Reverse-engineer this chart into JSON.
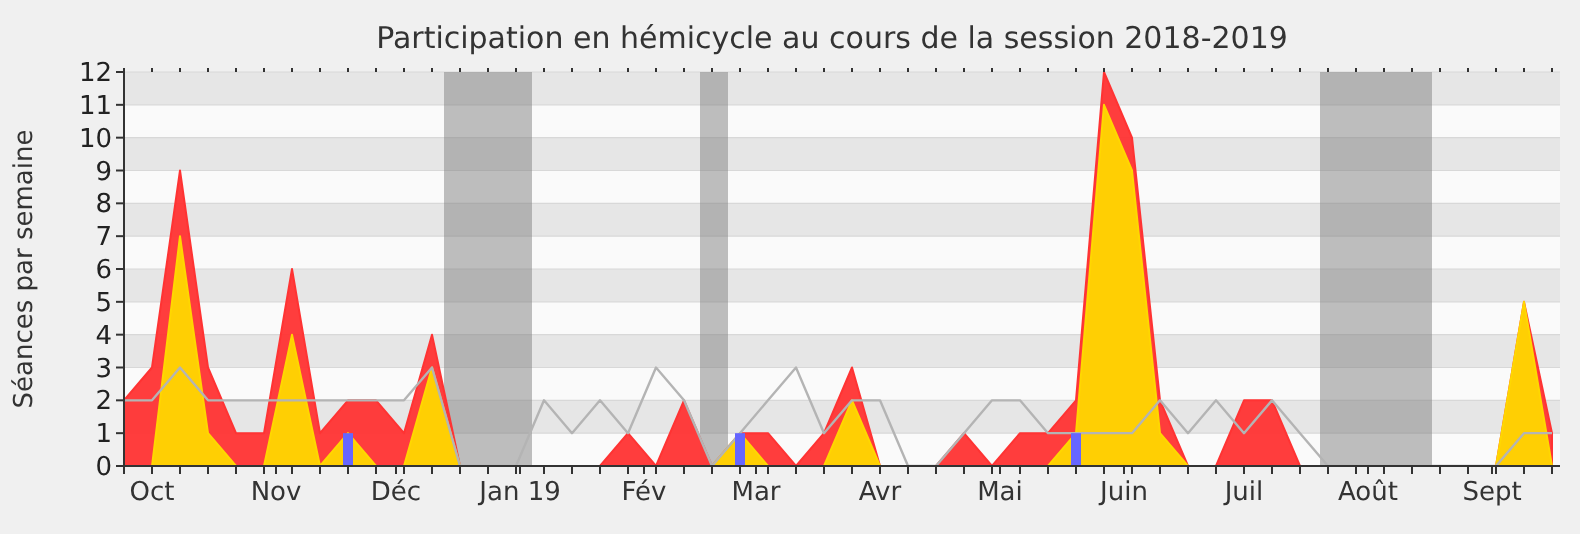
{
  "chart_data": {
    "type": "area",
    "title": "Participation en hémicycle au cours de la session 2018-2019",
    "ylabel": "Séances par semaine",
    "x": [
      "2018-09-24",
      "2018-10-01",
      "2018-10-08",
      "2018-10-15",
      "2018-10-22",
      "2018-10-29",
      "2018-11-05",
      "2018-11-12",
      "2018-11-19",
      "2018-11-26",
      "2018-12-03",
      "2018-12-10",
      "2018-12-17",
      "2018-12-24",
      "2018-12-31",
      "2019-01-07",
      "2019-01-14",
      "2019-01-21",
      "2019-01-28",
      "2019-02-04",
      "2019-02-11",
      "2019-02-18",
      "2019-02-25",
      "2019-03-04",
      "2019-03-11",
      "2019-03-18",
      "2019-03-25",
      "2019-04-01",
      "2019-04-08",
      "2019-04-15",
      "2019-04-22",
      "2019-04-29",
      "2019-05-06",
      "2019-05-13",
      "2019-05-20",
      "2019-05-27",
      "2019-06-03",
      "2019-06-10",
      "2019-06-17",
      "2019-06-24",
      "2019-07-01",
      "2019-07-08",
      "2019-07-15",
      "2019-07-22",
      "2019-07-29",
      "2019-08-05",
      "2019-08-12",
      "2019-08-19",
      "2019-08-26",
      "2019-09-02",
      "2019-09-09",
      "2019-09-16"
    ],
    "series": [
      {
        "color": "#ff3333",
        "values": [
          2,
          3,
          9,
          3,
          1,
          1,
          6,
          1,
          2,
          2,
          1,
          4,
          0,
          0,
          0,
          0,
          0,
          0,
          1,
          0,
          2,
          0,
          1,
          1,
          0,
          1,
          3,
          0,
          0,
          0,
          1,
          0,
          1,
          1,
          2,
          12,
          10,
          2,
          0,
          0,
          2,
          2,
          0,
          0,
          0,
          0,
          0,
          0,
          0,
          0,
          5,
          1
        ]
      },
      {
        "color": "#ffd700",
        "values": [
          0,
          0,
          7,
          1,
          0,
          0,
          4,
          0,
          1,
          0,
          0,
          3,
          0,
          0,
          0,
          0,
          0,
          0,
          0,
          0,
          0,
          0,
          1,
          0,
          0,
          0,
          2,
          0,
          0,
          0,
          0,
          0,
          0,
          0,
          1,
          11,
          9,
          1,
          0,
          0,
          0,
          0,
          0,
          0,
          0,
          0,
          0,
          0,
          0,
          0,
          5,
          0
        ]
      },
      {
        "type": "line",
        "color": "#b4b4b4",
        "values": [
          2,
          2,
          3,
          2,
          2,
          2,
          2,
          2,
          2,
          2,
          2,
          3,
          0,
          0,
          0,
          2,
          1,
          2,
          1,
          3,
          2,
          0,
          1,
          2,
          3,
          1,
          2,
          2,
          0,
          0,
          1,
          2,
          2,
          1,
          1,
          1,
          1,
          2,
          1,
          2,
          1,
          2,
          1,
          0,
          0,
          0,
          0,
          0,
          0,
          0,
          1,
          1
        ]
      },
      {
        "type": "bar",
        "color": "#6666ff",
        "values": [
          null,
          null,
          null,
          null,
          null,
          null,
          null,
          null,
          1,
          null,
          null,
          null,
          null,
          null,
          null,
          null,
          null,
          null,
          null,
          null,
          null,
          null,
          1,
          null,
          null,
          null,
          null,
          null,
          null,
          null,
          null,
          null,
          null,
          null,
          1,
          null,
          null,
          null,
          null,
          null,
          null,
          null,
          null,
          null,
          null,
          null,
          null,
          null,
          null,
          null,
          null,
          null
        ]
      }
    ],
    "xlim": [
      "2018-09-24",
      "2019-09-18"
    ],
    "xticks": [
      {
        "value": "2018-09-24",
        "label": null
      },
      {
        "value": "2018-10-01",
        "label": null
      },
      {
        "value": "2018-10-08",
        "label": null
      },
      {
        "value": "2018-10-15",
        "label": null
      },
      {
        "value": "2018-10-22",
        "label": null
      },
      {
        "value": "2018-10-29",
        "label": null
      },
      {
        "value": "2018-11-05",
        "label": null
      },
      {
        "value": "2018-11-12",
        "label": null
      },
      {
        "value": "2018-11-19",
        "label": null
      },
      {
        "value": "2018-11-26",
        "label": null
      },
      {
        "value": "2018-12-03",
        "label": null
      },
      {
        "value": "2018-12-10",
        "label": null
      },
      {
        "value": "2018-12-17",
        "label": null
      },
      {
        "value": "2018-12-24",
        "label": null
      },
      {
        "value": "2018-12-31",
        "label": null
      },
      {
        "value": "2019-01-07",
        "label": null
      },
      {
        "value": "2019-01-14",
        "label": null
      },
      {
        "value": "2019-01-21",
        "label": null
      },
      {
        "value": "2019-01-28",
        "label": null
      },
      {
        "value": "2019-02-04",
        "label": null
      },
      {
        "value": "2019-02-11",
        "label": null
      },
      {
        "value": "2019-02-18",
        "label": null
      },
      {
        "value": "2019-02-25",
        "label": null
      },
      {
        "value": "2019-03-04",
        "label": null
      },
      {
        "value": "2019-03-11",
        "label": null
      },
      {
        "value": "2019-03-18",
        "label": null
      },
      {
        "value": "2019-03-25",
        "label": null
      },
      {
        "value": "2019-04-01",
        "label": null
      },
      {
        "value": "2019-04-08",
        "label": null
      },
      {
        "value": "2019-04-15",
        "label": null
      },
      {
        "value": "2019-04-22",
        "label": null
      },
      {
        "value": "2019-04-29",
        "label": null
      },
      {
        "value": "2019-05-06",
        "label": null
      },
      {
        "value": "2019-05-13",
        "label": null
      },
      {
        "value": "2019-05-20",
        "label": null
      },
      {
        "value": "2019-05-27",
        "label": null
      },
      {
        "value": "2019-06-03",
        "label": null
      },
      {
        "value": "2019-06-10",
        "label": null
      },
      {
        "value": "2019-06-17",
        "label": null
      },
      {
        "value": "2019-06-24",
        "label": null
      },
      {
        "value": "2019-07-01",
        "label": null
      },
      {
        "value": "2019-07-08",
        "label": null
      },
      {
        "value": "2019-07-15",
        "label": null
      },
      {
        "value": "2019-07-22",
        "label": null
      },
      {
        "value": "2019-07-29",
        "label": null
      },
      {
        "value": "2019-08-05",
        "label": null
      },
      {
        "value": "2019-08-12",
        "label": null
      },
      {
        "value": "2019-08-19",
        "label": null
      },
      {
        "value": "2019-08-26",
        "label": null
      },
      {
        "value": "2019-09-02",
        "label": null
      },
      {
        "value": "2019-09-09",
        "label": null
      },
      {
        "value": "2019-09-16",
        "label": null
      },
      {
        "value": "2018-10-01",
        "label": "Oct"
      },
      {
        "value": "2018-11-01",
        "label": "Nov"
      },
      {
        "value": "2018-12-01",
        "label": "Déc"
      },
      {
        "value": "2019-01-01",
        "label": "Jan 19"
      },
      {
        "value": "2019-02-01",
        "label": "Fév"
      },
      {
        "value": "2019-03-01",
        "label": "Mar"
      },
      {
        "value": "2019-04-01",
        "label": "Avr"
      },
      {
        "value": "2019-05-01",
        "label": "Mai"
      },
      {
        "value": "2019-06-01",
        "label": "Juin"
      },
      {
        "value": "2019-07-01",
        "label": "Juil"
      },
      {
        "value": "2019-08-01",
        "label": "Août"
      },
      {
        "value": "2019-09-01",
        "label": "Sept"
      }
    ],
    "ylim": [
      0,
      12
    ],
    "yticks": [
      0,
      1,
      2,
      3,
      4,
      5,
      6,
      7,
      8,
      9,
      10,
      11,
      12
    ],
    "grid": "y",
    "bands": [
      {
        "axis": "x",
        "from": "2018-12-13",
        "to": "2019-01-04",
        "color": "#808080"
      },
      {
        "axis": "x",
        "from": "2019-02-15",
        "to": "2019-02-22",
        "color": "#808080"
      },
      {
        "axis": "x",
        "from": "2019-07-20",
        "to": "2019-08-17",
        "color": "#808080"
      }
    ]
  }
}
